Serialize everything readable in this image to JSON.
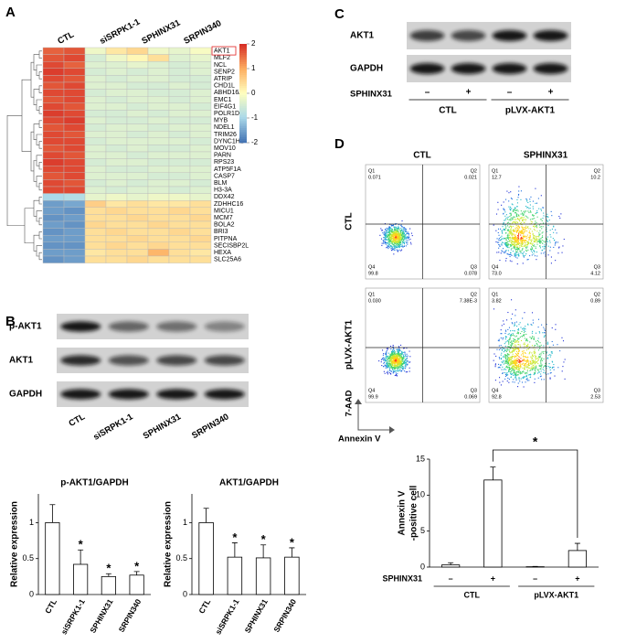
{
  "panel_labels": [
    "A",
    "B",
    "C",
    "D"
  ],
  "chart_data": [
    {
      "type": "heatmap",
      "columns": [
        "CTL",
        "siSRPK1-1",
        "SPHINX31",
        "SRPIN340"
      ],
      "rows": [
        "AKT1",
        "MLF2",
        "NCL",
        "SENP2",
        "ATRIP",
        "CHD1L",
        "ABHD16A",
        "EMC1",
        "EIF4G1",
        "POLR1D",
        "MYB",
        "NDEL1",
        "TRIM26",
        "DYNC1H1",
        "MOV10",
        "PARN",
        "RPS23",
        "ATP5F1A",
        "CASP7",
        "BLM",
        "H3-3A",
        "DDX42",
        "ZDHHC16",
        "MICU1",
        "MCM7",
        "BOLA2",
        "BRI3",
        "PITPNA",
        "SECISBP2L",
        "HEXA",
        "SLC25A6"
      ],
      "values": [
        [
          1.6,
          1.7,
          -0.2,
          0.3,
          0.5,
          -0.2,
          -0.3,
          -0.1
        ],
        [
          1.7,
          1.8,
          -0.5,
          -0.2,
          0.1,
          0.4,
          -0.4,
          -0.3
        ],
        [
          1.8,
          1.6,
          -0.4,
          -0.4,
          -0.3,
          -0.4,
          -0.5,
          -0.4
        ],
        [
          1.9,
          1.8,
          -0.5,
          -0.4,
          -0.5,
          -0.4,
          -0.5,
          -0.4
        ],
        [
          1.8,
          1.7,
          -0.4,
          -0.5,
          -0.4,
          -0.4,
          -0.5,
          -0.5
        ],
        [
          1.7,
          1.8,
          -0.4,
          -0.4,
          -0.5,
          -0.5,
          -0.4,
          -0.5
        ],
        [
          1.8,
          1.8,
          -0.5,
          -0.4,
          -0.4,
          -0.5,
          -0.5,
          -0.4
        ],
        [
          1.7,
          1.8,
          -0.4,
          -0.5,
          -0.4,
          -0.4,
          -0.5,
          -0.4
        ],
        [
          1.8,
          1.7,
          -0.4,
          -0.4,
          -0.5,
          -0.4,
          -0.4,
          -0.5
        ],
        [
          1.9,
          1.8,
          -0.5,
          -0.5,
          -0.4,
          -0.5,
          -0.4,
          -0.4
        ],
        [
          1.8,
          1.9,
          -0.4,
          -0.5,
          -0.5,
          -0.4,
          -0.5,
          -0.5
        ],
        [
          1.7,
          1.8,
          -0.5,
          -0.4,
          -0.4,
          -0.5,
          -0.4,
          -0.4
        ],
        [
          1.8,
          1.7,
          -0.4,
          -0.4,
          -0.5,
          -0.4,
          -0.5,
          -0.4
        ],
        [
          1.8,
          1.8,
          -0.5,
          -0.4,
          -0.4,
          -0.4,
          -0.4,
          -0.5
        ],
        [
          1.7,
          1.8,
          -0.4,
          -0.5,
          -0.4,
          -0.5,
          -0.5,
          -0.4
        ],
        [
          1.8,
          1.7,
          -0.4,
          -0.4,
          -0.5,
          -0.4,
          -0.4,
          -0.4
        ],
        [
          1.9,
          1.8,
          -0.5,
          -0.4,
          -0.4,
          -0.5,
          -0.5,
          -0.5
        ],
        [
          1.8,
          1.8,
          -0.4,
          -0.5,
          -0.5,
          -0.4,
          -0.4,
          -0.4
        ],
        [
          1.7,
          1.8,
          -0.4,
          -0.4,
          -0.4,
          -0.5,
          -0.5,
          -0.4
        ],
        [
          1.8,
          1.7,
          -0.5,
          -0.4,
          -0.5,
          -0.4,
          -0.4,
          -0.5
        ],
        [
          1.8,
          1.8,
          -0.4,
          -0.5,
          -0.4,
          -0.4,
          -0.5,
          -0.4
        ],
        [
          -1.0,
          -0.9,
          -0.3,
          -0.2,
          -0.3,
          -0.2,
          -0.2,
          -0.3
        ],
        [
          -1.6,
          -1.5,
          0.6,
          0.3,
          0.4,
          0.3,
          0.3,
          0.4
        ],
        [
          -1.6,
          -1.7,
          0.4,
          0.5,
          0.4,
          0.4,
          0.5,
          0.4
        ],
        [
          -1.7,
          -1.6,
          0.4,
          0.4,
          0.5,
          0.4,
          0.4,
          0.5
        ],
        [
          -1.6,
          -1.7,
          0.5,
          0.4,
          0.4,
          0.5,
          0.4,
          0.4
        ],
        [
          -1.7,
          -1.6,
          0.4,
          0.5,
          0.4,
          0.4,
          0.5,
          0.4
        ],
        [
          -1.6,
          -1.6,
          0.4,
          0.4,
          0.5,
          0.4,
          0.4,
          0.5
        ],
        [
          -1.7,
          -1.7,
          0.4,
          0.5,
          0.4,
          0.5,
          0.4,
          0.4
        ],
        [
          -1.6,
          -1.6,
          0.3,
          0.4,
          0.4,
          0.9,
          0.4,
          0.3
        ],
        [
          -1.7,
          -1.6,
          0.4,
          0.4,
          0.5,
          0.4,
          0.4,
          0.4
        ]
      ],
      "zlim": [
        -2,
        2
      ],
      "zticks": [
        2,
        1,
        0,
        -1,
        -2
      ],
      "colors": [
        "#4575b4",
        "#abd9e9",
        "#ffffbf",
        "#fdae61",
        "#d73027"
      ]
    },
    {
      "type": "bar",
      "title": "p-AKT1/GAPDH",
      "ylabel": "Relative expression",
      "categories": [
        "CTL",
        "siSRPK1-1",
        "SPHINX31",
        "SRPIN340"
      ],
      "values": [
        1.0,
        0.42,
        0.25,
        0.27
      ],
      "errors": [
        0.25,
        0.2,
        0.04,
        0.05
      ],
      "ylim": [
        0,
        1.4
      ],
      "yticks": [
        0,
        0.5,
        1
      ],
      "color": "#ffffff",
      "annotations": [
        {
          "text": "*",
          "at": "siSRPK1-1"
        },
        {
          "text": "*",
          "at": "SPHINX31"
        },
        {
          "text": "*",
          "at": "SRPIN340"
        }
      ]
    },
    {
      "type": "bar",
      "title": "AKT1/GAPDH",
      "ylabel": "Relative expression",
      "categories": [
        "CTL",
        "siSRPK1-1",
        "SPHINX31",
        "SRPIN340"
      ],
      "values": [
        1.0,
        0.52,
        0.51,
        0.52
      ],
      "errors": [
        0.2,
        0.2,
        0.18,
        0.13
      ],
      "ylim": [
        0,
        1.4
      ],
      "yticks": [
        0,
        0.5,
        1
      ],
      "color": "#ffffff",
      "annotations": [
        {
          "text": "*",
          "at": "siSRPK1-1"
        },
        {
          "text": "*",
          "at": "SPHINX31"
        },
        {
          "text": "*",
          "at": "SRPIN340"
        }
      ]
    },
    {
      "type": "bar",
      "ylabel": [
        "Annexin V",
        "-positive cell"
      ],
      "categories": [
        "–",
        "+",
        "–",
        "+"
      ],
      "row_label": "SPHINX31",
      "groups": [
        "CTL",
        "pLVX-AKT1"
      ],
      "values": [
        0.3,
        12.1,
        0.05,
        2.3
      ],
      "errors": [
        0.3,
        1.8,
        0.05,
        1.0
      ],
      "ylim": [
        0,
        15
      ],
      "yticks": [
        0,
        5,
        10,
        15
      ],
      "color": "#ffffff",
      "bracket": {
        "text": "*",
        "between": [
          1,
          3
        ]
      }
    }
  ],
  "blot_B": {
    "rows": [
      "p-AKT1",
      "AKT1",
      "GAPDH"
    ],
    "lanes": [
      "CTL",
      "siSRPK1-1",
      "SPHINX31",
      "SRPIN340"
    ]
  },
  "blot_C": {
    "rows": [
      "AKT1",
      "GAPDH"
    ],
    "row_label": "SPHINX31",
    "marks": [
      "–",
      "+",
      "–",
      "+"
    ],
    "groups": [
      "CTL",
      "pLVX-AKT1"
    ]
  },
  "flow_D": {
    "columns": [
      "CTL",
      "SPHINX31"
    ],
    "rows": [
      "CTL",
      "pLVX-AKT1"
    ],
    "quadrants": [
      "Q1",
      "Q2",
      "Q4",
      "Q3"
    ],
    "plots": [
      [
        "0.071",
        "0.021",
        "99.8",
        "0.078"
      ],
      [
        "12.7",
        "10.2",
        "73.0",
        "4.12"
      ],
      [
        "0.030",
        "7.38E-3",
        "99.9",
        "0.069"
      ],
      [
        "3.82",
        "0.89",
        "92.8",
        "2.53"
      ]
    ],
    "y_axis": "7-AAD",
    "x_axis": "Annexin V"
  }
}
